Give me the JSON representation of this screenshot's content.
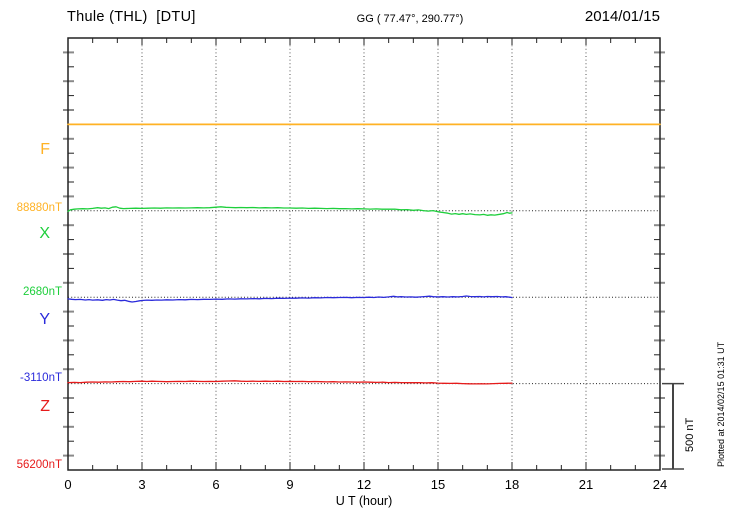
{
  "header": {
    "title": "Thule (THL)  [DTU]",
    "coords": "GG ( 77.47°, 290.77°)",
    "date": "2014/01/15"
  },
  "xaxis": {
    "labels": [
      "0",
      "3",
      "6",
      "9",
      "12",
      "15",
      "18",
      "21",
      "24"
    ],
    "title": "U T (hour)"
  },
  "scale_bar": {
    "label": "500 nT",
    "value_nT": 500
  },
  "footer": {
    "plotted": "Plotted at 2014/02/15 01:31 UT"
  },
  "colors": {
    "axis": "#222222",
    "grid": "#555555",
    "baseline_dots": "#222222"
  },
  "chart_data": {
    "type": "line",
    "title": "Thule (THL) [DTU] magnetogram 2014/01/15",
    "xlabel": "U T (hour)",
    "x_range": [
      0,
      24
    ],
    "grid": "dotted vertical every 3 h, dotted horizontal at each component baseline",
    "scale": {
      "bar_nT": 500
    },
    "points_format": "[hour_UT, offset_nT_from_baseline]",
    "series": [
      {
        "name": "F",
        "color": "#FFB224",
        "baseline_nT": 88880,
        "baseline_label": "88880nT",
        "points": [
          [
            0,
            0
          ],
          [
            6,
            0
          ],
          [
            12,
            0
          ],
          [
            18,
            0
          ],
          [
            24,
            0
          ]
        ]
      },
      {
        "name": "X",
        "color": "#1ECF3C",
        "baseline_nT": 2680,
        "baseline_label": "2680nT",
        "points": [
          [
            0,
            -3
          ],
          [
            0.1,
            6
          ],
          [
            0.25,
            9
          ],
          [
            0.4,
            11
          ],
          [
            0.6,
            12
          ],
          [
            0.8,
            11
          ],
          [
            1.0,
            14
          ],
          [
            1.2,
            18
          ],
          [
            1.35,
            15
          ],
          [
            1.5,
            17
          ],
          [
            1.65,
            13
          ],
          [
            1.8,
            21
          ],
          [
            1.95,
            23
          ],
          [
            2.1,
            15
          ],
          [
            2.25,
            13
          ],
          [
            2.5,
            14
          ],
          [
            2.75,
            15
          ],
          [
            3.0,
            14
          ],
          [
            3.25,
            15
          ],
          [
            3.5,
            16
          ],
          [
            3.75,
            15
          ],
          [
            4.0,
            17
          ],
          [
            4.25,
            16
          ],
          [
            4.5,
            17
          ],
          [
            4.75,
            16
          ],
          [
            5.0,
            17
          ],
          [
            5.25,
            18
          ],
          [
            5.5,
            17
          ],
          [
            5.75,
            18
          ],
          [
            6.0,
            21
          ],
          [
            6.2,
            23
          ],
          [
            6.4,
            20
          ],
          [
            6.6,
            19
          ],
          [
            6.8,
            18
          ],
          [
            7.0,
            19
          ],
          [
            7.25,
            18
          ],
          [
            7.5,
            19
          ],
          [
            7.75,
            17
          ],
          [
            8.0,
            18
          ],
          [
            8.25,
            17
          ],
          [
            8.5,
            18
          ],
          [
            8.75,
            16
          ],
          [
            9.0,
            16
          ],
          [
            9.25,
            15
          ],
          [
            9.5,
            16
          ],
          [
            9.75,
            14
          ],
          [
            10.0,
            15
          ],
          [
            10.25,
            14
          ],
          [
            10.5,
            13
          ],
          [
            10.75,
            14
          ],
          [
            11.0,
            12
          ],
          [
            11.25,
            13
          ],
          [
            11.5,
            11
          ],
          [
            11.75,
            12
          ],
          [
            12.0,
            11
          ],
          [
            12.25,
            10
          ],
          [
            12.5,
            11
          ],
          [
            12.75,
            9
          ],
          [
            13.0,
            9
          ],
          [
            13.25,
            10
          ],
          [
            13.5,
            6
          ],
          [
            13.75,
            7
          ],
          [
            14.0,
            3
          ],
          [
            14.2,
            5
          ],
          [
            14.4,
            1
          ],
          [
            14.6,
            -2
          ],
          [
            14.8,
            1
          ],
          [
            15.0,
            -6
          ],
          [
            15.2,
            -10
          ],
          [
            15.4,
            -14
          ],
          [
            15.55,
            -19
          ],
          [
            15.7,
            -16
          ],
          [
            15.85,
            -20
          ],
          [
            16.0,
            -17
          ],
          [
            16.15,
            -21
          ],
          [
            16.3,
            -18
          ],
          [
            16.5,
            -22
          ],
          [
            16.7,
            -24
          ],
          [
            16.85,
            -21
          ],
          [
            17.0,
            -26
          ],
          [
            17.15,
            -23
          ],
          [
            17.3,
            -25
          ],
          [
            17.5,
            -20
          ],
          [
            17.65,
            -17
          ],
          [
            17.8,
            -10
          ],
          [
            17.9,
            -14
          ],
          [
            18.0,
            -12
          ]
        ]
      },
      {
        "name": "Y",
        "color": "#2B2BDB",
        "baseline_nT": -3110,
        "baseline_label": "-3110nT",
        "points": [
          [
            0,
            -10
          ],
          [
            0.15,
            -12
          ],
          [
            0.3,
            -14
          ],
          [
            0.5,
            -13
          ],
          [
            0.7,
            -16
          ],
          [
            0.85,
            -14
          ],
          [
            1.0,
            -17
          ],
          [
            1.2,
            -15
          ],
          [
            1.4,
            -18
          ],
          [
            1.55,
            -14
          ],
          [
            1.7,
            -16
          ],
          [
            1.85,
            -13
          ],
          [
            2.0,
            -17
          ],
          [
            2.15,
            -20
          ],
          [
            2.3,
            -18
          ],
          [
            2.45,
            -24
          ],
          [
            2.6,
            -28
          ],
          [
            2.75,
            -25
          ],
          [
            2.9,
            -21
          ],
          [
            3.0,
            -19
          ],
          [
            3.2,
            -17
          ],
          [
            3.4,
            -18
          ],
          [
            3.6,
            -16
          ],
          [
            3.8,
            -17
          ],
          [
            4.0,
            -15
          ],
          [
            4.25,
            -16
          ],
          [
            4.5,
            -14
          ],
          [
            4.75,
            -15
          ],
          [
            5.0,
            -13
          ],
          [
            5.25,
            -14
          ],
          [
            5.5,
            -12
          ],
          [
            5.75,
            -13
          ],
          [
            6.0,
            -11
          ],
          [
            6.25,
            -12
          ],
          [
            6.5,
            -10
          ],
          [
            6.75,
            -11
          ],
          [
            7.0,
            -9
          ],
          [
            7.25,
            -10
          ],
          [
            7.5,
            -8
          ],
          [
            7.75,
            -9
          ],
          [
            8.0,
            -7
          ],
          [
            8.25,
            -8
          ],
          [
            8.5,
            -6
          ],
          [
            8.75,
            -7
          ],
          [
            9.0,
            -5
          ],
          [
            9.25,
            -6
          ],
          [
            9.5,
            -4
          ],
          [
            9.75,
            -5
          ],
          [
            10.0,
            -3
          ],
          [
            10.25,
            -4
          ],
          [
            10.5,
            -2
          ],
          [
            10.75,
            -3
          ],
          [
            11.0,
            -2
          ],
          [
            11.25,
            -1
          ],
          [
            11.5,
            -3
          ],
          [
            11.75,
            -1
          ],
          [
            12.0,
            -2
          ],
          [
            12.2,
            0
          ],
          [
            12.4,
            -2
          ],
          [
            12.6,
            1
          ],
          [
            12.8,
            -1
          ],
          [
            13.0,
            2
          ],
          [
            13.2,
            5
          ],
          [
            13.35,
            2
          ],
          [
            13.5,
            3
          ],
          [
            13.7,
            1
          ],
          [
            13.9,
            2
          ],
          [
            14.1,
            0
          ],
          [
            14.3,
            2
          ],
          [
            14.5,
            4
          ],
          [
            14.65,
            6
          ],
          [
            14.8,
            3
          ],
          [
            15.0,
            2
          ],
          [
            15.2,
            3
          ],
          [
            15.4,
            1
          ],
          [
            15.6,
            3
          ],
          [
            15.8,
            2
          ],
          [
            16.0,
            4
          ],
          [
            16.15,
            7
          ],
          [
            16.3,
            4
          ],
          [
            16.5,
            3
          ],
          [
            16.7,
            4
          ],
          [
            16.85,
            2
          ],
          [
            17.0,
            4
          ],
          [
            17.2,
            3
          ],
          [
            17.4,
            4
          ],
          [
            17.6,
            2
          ],
          [
            17.75,
            3
          ],
          [
            17.9,
            0
          ],
          [
            18.0,
            -2
          ]
        ]
      },
      {
        "name": "Z",
        "color": "#E61B1B",
        "baseline_nT": 56200,
        "baseline_label": "56200nT",
        "points": [
          [
            0,
            5
          ],
          [
            0.25,
            7
          ],
          [
            0.5,
            6
          ],
          [
            0.75,
            8
          ],
          [
            1.0,
            9
          ],
          [
            1.25,
            8
          ],
          [
            1.5,
            10
          ],
          [
            1.75,
            9
          ],
          [
            2.0,
            11
          ],
          [
            2.25,
            12
          ],
          [
            2.5,
            11
          ],
          [
            2.75,
            13
          ],
          [
            3.0,
            14
          ],
          [
            3.2,
            12
          ],
          [
            3.4,
            14
          ],
          [
            3.6,
            13
          ],
          [
            3.8,
            12
          ],
          [
            4.0,
            11
          ],
          [
            4.25,
            12
          ],
          [
            4.5,
            13
          ],
          [
            4.75,
            12
          ],
          [
            5.0,
            14
          ],
          [
            5.25,
            13
          ],
          [
            5.5,
            12
          ],
          [
            5.75,
            13
          ],
          [
            6.0,
            12
          ],
          [
            6.25,
            14
          ],
          [
            6.5,
            15
          ],
          [
            6.75,
            16
          ],
          [
            7.0,
            14
          ],
          [
            7.25,
            13
          ],
          [
            7.5,
            14
          ],
          [
            7.75,
            13
          ],
          [
            8.0,
            14
          ],
          [
            8.25,
            13
          ],
          [
            8.5,
            14
          ],
          [
            8.75,
            12
          ],
          [
            9.0,
            13
          ],
          [
            9.25,
            12
          ],
          [
            9.5,
            13
          ],
          [
            9.75,
            11
          ],
          [
            10.0,
            12
          ],
          [
            10.25,
            11
          ],
          [
            10.5,
            10
          ],
          [
            10.75,
            11
          ],
          [
            11.0,
            9
          ],
          [
            11.25,
            10
          ],
          [
            11.5,
            9
          ],
          [
            11.75,
            8
          ],
          [
            12.0,
            9
          ],
          [
            12.25,
            8
          ],
          [
            12.5,
            7
          ],
          [
            12.75,
            8
          ],
          [
            13.0,
            6
          ],
          [
            13.25,
            7
          ],
          [
            13.5,
            6
          ],
          [
            13.75,
            5
          ],
          [
            14.0,
            6
          ],
          [
            14.25,
            5
          ],
          [
            14.5,
            4
          ],
          [
            14.75,
            5
          ],
          [
            15.0,
            3
          ],
          [
            15.25,
            2
          ],
          [
            15.5,
            1
          ],
          [
            15.75,
            2
          ],
          [
            16.0,
            0
          ],
          [
            16.25,
            -1
          ],
          [
            16.5,
            -2
          ],
          [
            16.75,
            -1
          ],
          [
            17.0,
            -2
          ],
          [
            17.25,
            0
          ],
          [
            17.5,
            1
          ],
          [
            17.75,
            2
          ],
          [
            18.0,
            3
          ]
        ]
      }
    ]
  }
}
